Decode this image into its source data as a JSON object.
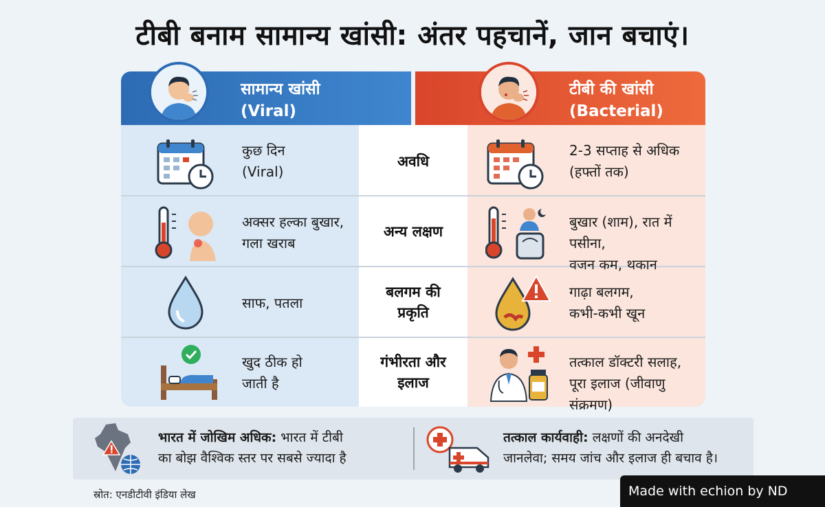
{
  "title": "टीबी बनाम सामान्य खांसी: अंतर पहचानें, जान बचाएं।",
  "columns": {
    "left": {
      "line1": "सामान्य खांसी",
      "line2": "(Viral)"
    },
    "right": {
      "line1": "टीबी की खांसी",
      "line2": "(Bacterial)"
    }
  },
  "rows": [
    {
      "label_l1": "अवधि",
      "label_l2": "",
      "left_l1": "कुछ दिन",
      "left_l2": "(Viral)",
      "right_l1": "2-3 सप्ताह से अधिक",
      "right_l2": "(हफ्तों तक)",
      "left_icon": "calendar-clock-icon",
      "right_icon": "calendar-clock-icon"
    },
    {
      "label_l1": "अन्य लक्षण",
      "label_l2": "",
      "left_l1": "अक्सर हल्का बुखार,",
      "left_l2": "गला खराब",
      "right_l1": "बुखार (शाम), रात में पसीना,",
      "right_l2": "वजन कम, थकान",
      "left_icon": "thermometer-sore-throat-icon",
      "right_icon": "thermometer-night-sweat-scale-icon"
    },
    {
      "label_l1": "बलगम की",
      "label_l2": "प्रकृति",
      "left_l1": "साफ, पतला",
      "left_l2": "",
      "right_l1": "गाढ़ा बलगम,",
      "right_l2": "कभी-कभी खून",
      "left_icon": "water-drop-icon",
      "right_icon": "blood-drop-warning-icon"
    },
    {
      "label_l1": "गंभीरता और",
      "label_l2": "इलाज",
      "left_l1": "खुद ठीक हो",
      "left_l2": "जाती है",
      "right_l1": "तत्काल डॉक्टरी सलाह,",
      "right_l2": "पूरा इलाज (जीवाणु संक्रमण)",
      "left_icon": "bed-check-icon",
      "right_icon": "doctor-medicine-icon"
    }
  ],
  "bottom": {
    "left_bold": "भारत में जोखिम अधिक:",
    "left_rest1": " भारत में टीबी",
    "left_line2": "का बोझ वैश्विक स्तर पर सबसे ज्यादा है",
    "left_icon": "india-map-globe-icon",
    "right_bold": "तत्काल कार्यवाही:",
    "right_rest1": " लक्षणों की अनदेखी",
    "right_line2": "जानलेवा; समय जांच और इलाज ही बचाव है।",
    "right_icon": "ambulance-icon"
  },
  "source": "स्रोत: एनडीटीवी इंडिया लेख",
  "watermark": "Made with echion by ND",
  "colors": {
    "blue": "#2d6cb4",
    "red": "#d9452b",
    "left_bg": "#dbe9f6",
    "right_bg": "#fbe5dc"
  }
}
